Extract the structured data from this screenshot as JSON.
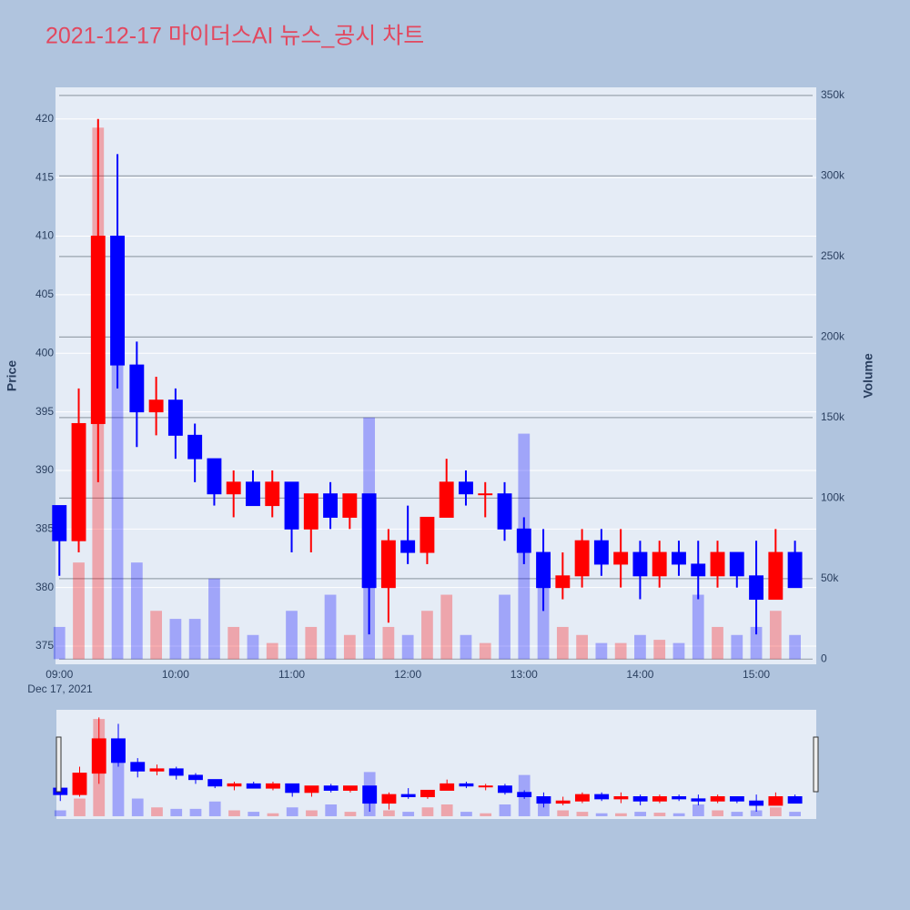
{
  "chart_data": {
    "type": "candlestick",
    "title": "2021-12-17 마이더스AI 뉴스_공시 차트",
    "y_label": "Price",
    "y2_label": "Volume",
    "x": [
      "2021-12-17 09:00",
      "2021-12-17 09:10",
      "2021-12-17 09:20",
      "2021-12-17 09:30",
      "2021-12-17 09:40",
      "2021-12-17 09:50",
      "2021-12-17 10:00",
      "2021-12-17 10:10",
      "2021-12-17 10:20",
      "2021-12-17 10:30",
      "2021-12-17 10:40",
      "2021-12-17 10:50",
      "2021-12-17 11:00",
      "2021-12-17 11:10",
      "2021-12-17 11:20",
      "2021-12-17 11:30",
      "2021-12-17 11:40",
      "2021-12-17 11:50",
      "2021-12-17 12:00",
      "2021-12-17 12:10",
      "2021-12-17 12:20",
      "2021-12-17 12:30",
      "2021-12-17 12:40",
      "2021-12-17 12:50",
      "2021-12-17 13:00",
      "2021-12-17 13:10",
      "2021-12-17 13:20",
      "2021-12-17 13:30",
      "2021-12-17 13:40",
      "2021-12-17 13:50",
      "2021-12-17 14:00",
      "2021-12-17 14:10",
      "2021-12-17 14:20",
      "2021-12-17 14:30",
      "2021-12-17 14:40",
      "2021-12-17 14:50",
      "2021-12-17 15:00",
      "2021-12-17 15:10",
      "2021-12-17 15:20"
    ],
    "open": [
      387,
      384,
      394,
      410,
      399,
      395,
      396,
      393,
      391,
      388,
      389,
      387,
      389,
      385,
      388,
      386,
      388,
      380,
      384,
      383,
      386,
      389,
      388,
      388,
      385,
      383,
      380,
      381,
      384,
      382,
      383,
      381,
      383,
      382,
      381,
      383,
      381,
      379,
      383
    ],
    "high": [
      387,
      397,
      420,
      417,
      401,
      398,
      397,
      394,
      391,
      390,
      390,
      390,
      389,
      388,
      389,
      388,
      388,
      385,
      387,
      386,
      391,
      390,
      389,
      389,
      386,
      385,
      383,
      385,
      385,
      385,
      384,
      384,
      384,
      384,
      384,
      383,
      384,
      385,
      384
    ],
    "low": [
      381,
      383,
      389,
      397,
      392,
      393,
      391,
      389,
      387,
      386,
      387,
      386,
      383,
      383,
      385,
      385,
      376,
      377,
      382,
      382,
      386,
      387,
      386,
      384,
      382,
      378,
      379,
      380,
      381,
      380,
      379,
      380,
      381,
      379,
      380,
      380,
      376,
      379,
      380
    ],
    "close": [
      384,
      394,
      410,
      399,
      395,
      396,
      393,
      391,
      388,
      389,
      387,
      389,
      385,
      388,
      386,
      388,
      380,
      384,
      383,
      386,
      389,
      388,
      388,
      385,
      383,
      380,
      381,
      384,
      382,
      383,
      381,
      383,
      382,
      381,
      383,
      381,
      379,
      383,
      380
    ],
    "volume": [
      20000,
      60000,
      330000,
      200000,
      60000,
      30000,
      25000,
      25000,
      50000,
      20000,
      15000,
      10000,
      30000,
      20000,
      40000,
      15000,
      150000,
      20000,
      15000,
      30000,
      40000,
      15000,
      10000,
      40000,
      140000,
      45000,
      20000,
      15000,
      10000,
      10000,
      15000,
      12000,
      10000,
      40000,
      20000,
      15000,
      20000,
      30000,
      15000
    ],
    "increasing_color": "#ff0000",
    "decreasing_color": "#0000ff",
    "xlim": [
      "2021-12-17 08:58",
      "2021-12-17 15:31"
    ],
    "xticks": [
      {
        "value": "2021-12-17 09:00",
        "label": "09:00"
      },
      {
        "value": "2021-12-17 10:00",
        "label": "10:00"
      },
      {
        "value": "2021-12-17 11:00",
        "label": "11:00"
      },
      {
        "value": "2021-12-17 12:00",
        "label": "12:00"
      },
      {
        "value": "2021-12-17 13:00",
        "label": "13:00"
      },
      {
        "value": "2021-12-17 14:00",
        "label": "14:00"
      },
      {
        "value": "2021-12-17 15:00",
        "label": "15:00"
      }
    ],
    "x_date_label": "Dec 17, 2021",
    "ylim": [
      373.45,
      422.7
    ],
    "yticks": [
      375,
      380,
      385,
      390,
      395,
      400,
      405,
      410,
      415,
      420
    ],
    "y2lim": [
      -3200,
      355000
    ],
    "y2ticks": [
      0,
      {
        "value": 50000,
        "label": "50k"
      },
      {
        "value": 100000,
        "label": "100k"
      },
      {
        "value": 150000,
        "label": "150k"
      },
      {
        "value": 200000,
        "label": "200k"
      },
      {
        "value": 250000,
        "label": "250k"
      },
      {
        "value": 300000,
        "label": "300k"
      },
      {
        "value": 350000,
        "label": "350k"
      }
    ],
    "grid": true,
    "rangeslider": true
  }
}
